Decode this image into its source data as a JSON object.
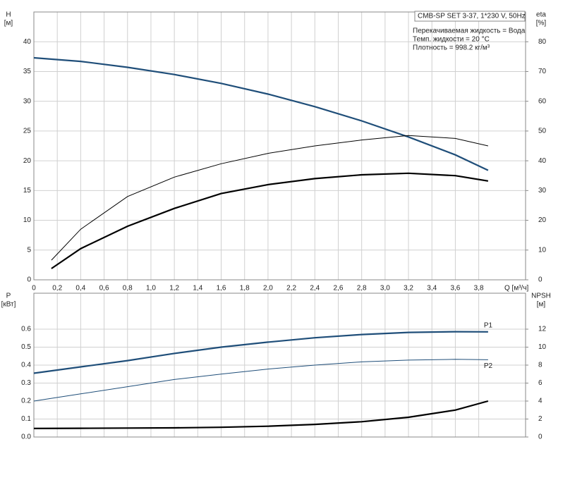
{
  "chart_data": [
    {
      "type": "line",
      "title": "CMB-SP SET 3-37, 1*230 V, 50Hz",
      "annotations": [
        "Перекачиваемая жидкость = Вода",
        "Темп. жидкости = 20 °C",
        "Плотность = 998.2 кг/м³"
      ],
      "y_label": "H",
      "y_unit": "[м]",
      "y2_label": "eta",
      "y2_unit": "[%]",
      "x_label": "Q [м³/ч]",
      "xlim": [
        0,
        4.2
      ],
      "ylim": [
        0,
        45
      ],
      "y2lim": [
        0,
        90
      ],
      "xticks": [
        0,
        {
          "value": 0.2,
          "label": "0,2"
        },
        {
          "value": 0.4,
          "label": "0,4"
        },
        {
          "value": 0.6,
          "label": "0,6"
        },
        {
          "value": 0.8,
          "label": "0,8"
        },
        {
          "value": 1.0,
          "label": "1,0"
        },
        {
          "value": 1.2,
          "label": "1,2"
        },
        {
          "value": 1.4,
          "label": "1,4"
        },
        {
          "value": 1.6,
          "label": "1,6"
        },
        {
          "value": 1.8,
          "label": "1,8"
        },
        {
          "value": 2.0,
          "label": "2,0"
        },
        {
          "value": 2.2,
          "label": "2,2"
        },
        {
          "value": 2.4,
          "label": "2,4"
        },
        {
          "value": 2.6,
          "label": "2,6"
        },
        {
          "value": 2.8,
          "label": "2,8"
        },
        {
          "value": 3.0,
          "label": "3,0"
        },
        {
          "value": 3.2,
          "label": "3,2"
        },
        {
          "value": 3.4,
          "label": "3,4"
        },
        {
          "value": 3.6,
          "label": "3,6"
        },
        {
          "value": 3.8,
          "label": "3,8"
        }
      ],
      "yticks": [
        0,
        5,
        10,
        15,
        20,
        25,
        30,
        35,
        40
      ],
      "y2ticks": [
        0,
        10,
        20,
        30,
        40,
        50,
        60,
        70,
        80
      ],
      "grid": true,
      "series": [
        {
          "color": "#1f4e79",
          "style": "thick",
          "x": [
            0,
            0.4,
            0.8,
            1.2,
            1.6,
            2.0,
            2.4,
            2.8,
            3.2,
            3.6,
            3.88
          ],
          "values": [
            37.3,
            36.7,
            35.7,
            34.5,
            33.0,
            31.2,
            29.1,
            26.7,
            24.0,
            21.0,
            18.4
          ]
        },
        {
          "color": "#000000",
          "style": "thin",
          "axis": "y2",
          "x": [
            0.15,
            0.4,
            0.8,
            1.2,
            1.6,
            2.0,
            2.4,
            2.8,
            3.2,
            3.6,
            3.88
          ],
          "values": [
            6.6,
            17,
            28,
            34.5,
            39,
            42.5,
            45,
            47,
            48.5,
            47.5,
            45
          ]
        },
        {
          "color": "#000000",
          "style": "thick",
          "axis": "y2",
          "x": [
            0.15,
            0.4,
            0.8,
            1.2,
            1.6,
            2.0,
            2.4,
            2.8,
            3.2,
            3.6,
            3.88
          ],
          "values": [
            3.8,
            10.5,
            18,
            24,
            29,
            32,
            34,
            35.3,
            35.8,
            35,
            33.2
          ]
        }
      ]
    },
    {
      "type": "line",
      "y_label": "P",
      "y_unit": "[кВт]",
      "y2_label": "NPSH",
      "y2_unit": "[м]",
      "xlim": [
        0,
        4.2
      ],
      "ylim": [
        0,
        0.8
      ],
      "y2lim": [
        0,
        16
      ],
      "yticks": [
        {
          "value": 0,
          "label": "0.0"
        },
        0.1,
        0.2,
        0.3,
        0.4,
        0.5,
        0.6
      ],
      "y2ticks": [
        0,
        2,
        4,
        6,
        8,
        10,
        12
      ],
      "grid": true,
      "series": [
        {
          "name": "P1",
          "color": "#1f4e79",
          "style": "thick",
          "x": [
            0,
            0.4,
            0.8,
            1.2,
            1.6,
            2.0,
            2.4,
            2.8,
            3.2,
            3.6,
            3.88
          ],
          "values": [
            0.355,
            0.39,
            0.425,
            0.465,
            0.5,
            0.528,
            0.552,
            0.57,
            0.582,
            0.586,
            0.585
          ]
        },
        {
          "name": "P2",
          "color": "#1f4e79",
          "style": "thin",
          "x": [
            0,
            0.4,
            0.8,
            1.2,
            1.6,
            2.0,
            2.4,
            2.8,
            3.2,
            3.6,
            3.88
          ],
          "values": [
            0.2,
            0.24,
            0.28,
            0.32,
            0.35,
            0.378,
            0.4,
            0.418,
            0.428,
            0.432,
            0.43
          ]
        },
        {
          "color": "#000000",
          "style": "thick",
          "axis": "y2",
          "x": [
            0,
            0.4,
            0.8,
            1.2,
            1.6,
            2.0,
            2.4,
            2.8,
            3.2,
            3.6,
            3.88
          ],
          "values": [
            0.95,
            0.97,
            1.0,
            1.02,
            1.08,
            1.2,
            1.4,
            1.7,
            2.2,
            3.0,
            4.0
          ]
        }
      ]
    }
  ]
}
